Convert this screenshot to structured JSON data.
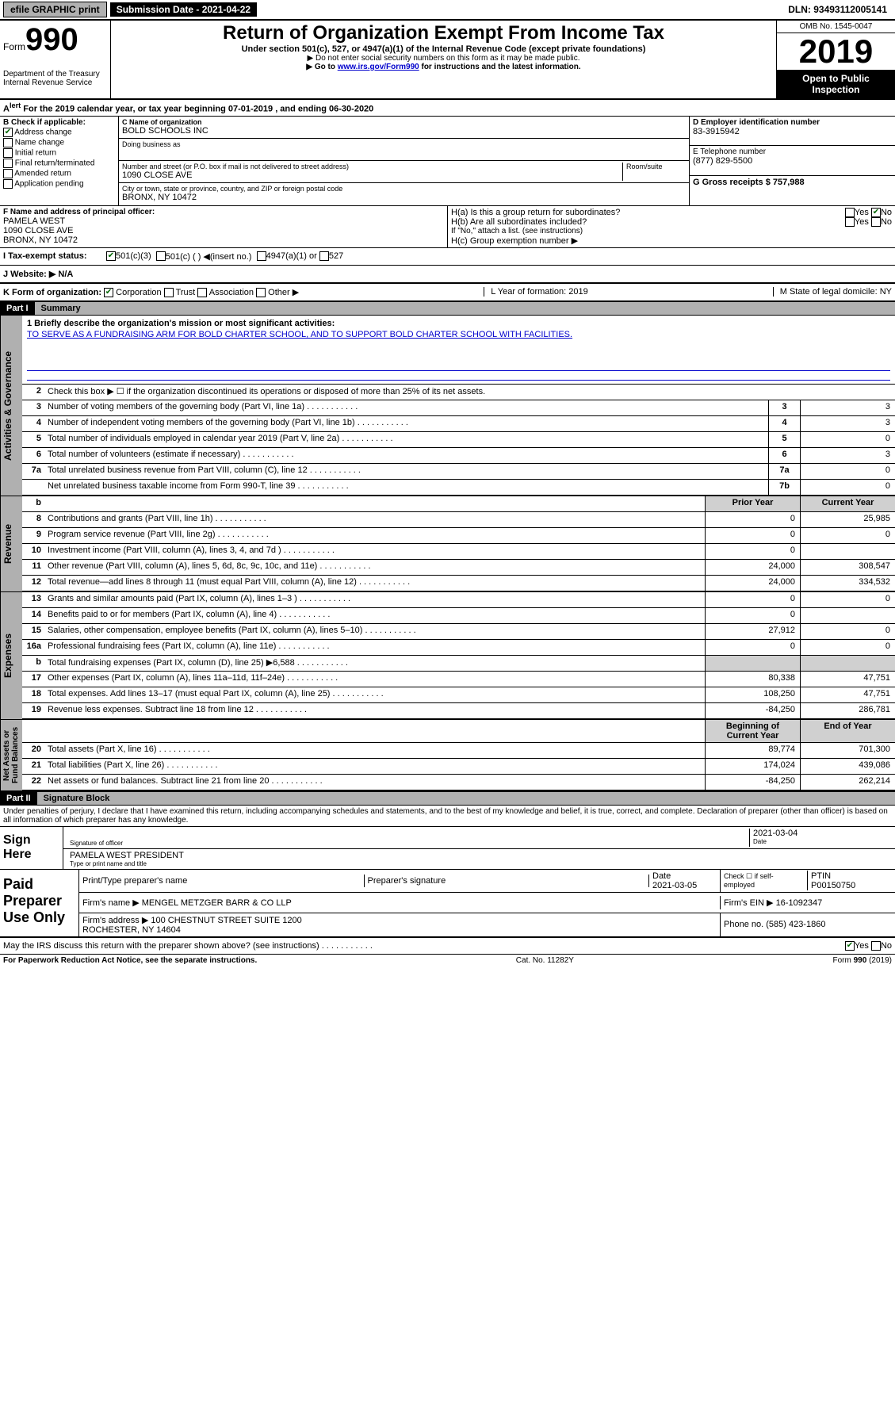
{
  "topbar": {
    "efile": "efile GRAPHIC print",
    "submission_label": "Submission Date - 2021-04-22",
    "dln": "DLN: 93493112005141"
  },
  "header": {
    "form_word": "Form",
    "form_num": "990",
    "dept": "Department of the Treasury\nInternal Revenue Service",
    "main_title": "Return of Organization Exempt From Income Tax",
    "sub1": "Under section 501(c), 527, or 4947(a)(1) of the Internal Revenue Code (except private foundations)",
    "sub2": "▶ Do not enter social security numbers on this form as it may be made public.",
    "sub3_pre": "▶ Go to ",
    "sub3_link": "www.irs.gov/Form990",
    "sub3_post": " for instructions and the latest information.",
    "omb": "OMB No. 1545-0047",
    "year": "2019",
    "open_public": "Open to Public Inspection"
  },
  "period": {
    "text": "For the 2019 calendar year, or tax year beginning 07-01-2019    , and ending 06-30-2020"
  },
  "box_b": {
    "title": "B Check if applicable:",
    "items": [
      "Address change",
      "Name change",
      "Initial return",
      "Final return/terminated",
      "Amended return",
      "Application pending"
    ],
    "checked": [
      true,
      false,
      false,
      false,
      false,
      false
    ]
  },
  "box_c": {
    "name_label": "C Name of organization",
    "name": "BOLD SCHOOLS INC",
    "dba_label": "Doing business as",
    "dba": "",
    "addr_label": "Number and street (or P.O. box if mail is not delivered to street address)",
    "room_label": "Room/suite",
    "addr": "1090 CLOSE AVE",
    "city_label": "City or town, state or province, country, and ZIP or foreign postal code",
    "city": "BRONX, NY  10472"
  },
  "box_d": {
    "label": "D Employer identification number",
    "value": "83-3915942"
  },
  "box_e": {
    "label": "E Telephone number",
    "value": "(877) 829-5500"
  },
  "box_g": {
    "label": "G Gross receipts $ 757,988"
  },
  "officer": {
    "label": "F  Name and address of principal officer:",
    "name": "PAMELA WEST",
    "addr1": "1090 CLOSE AVE",
    "addr2": "BRONX, NY  10472"
  },
  "box_h": {
    "ha": "H(a)  Is this a group return for subordinates?",
    "ha_yes": "Yes",
    "ha_no": "No",
    "hb": "H(b)  Are all subordinates included?",
    "hb_yes": "Yes",
    "hb_no": "No",
    "hb_note": "If \"No,\" attach a list. (see instructions)",
    "hc": "H(c)  Group exemption number ▶"
  },
  "row_i": {
    "label": "I   Tax-exempt status:",
    "opt1": "501(c)(3)",
    "opt2": "501(c) (  ) ◀(insert no.)",
    "opt3": "4947(a)(1) or",
    "opt4": "527"
  },
  "row_j": {
    "label": "J   Website: ▶",
    "value": "N/A"
  },
  "row_k": {
    "label": "K Form of organization:",
    "opts": [
      "Corporation",
      "Trust",
      "Association",
      "Other ▶"
    ],
    "l_label": "L Year of formation: 2019",
    "m_label": "M State of legal domicile: NY"
  },
  "part1": {
    "header": "Part I",
    "title": "Summary",
    "line1_label": "1  Briefly describe the organization's mission or most significant activities:",
    "line1_text": "TO SERVE AS A FUNDRAISING ARM FOR BOLD CHARTER SCHOOL, AND TO SUPPORT BOLD CHARTER SCHOOL WITH FACILITIES.",
    "line2": "Check this box ▶ ☐  if the organization discontinued its operations or disposed of more than 25% of its net assets.",
    "gov_lines": [
      {
        "n": "3",
        "t": "Number of voting members of the governing body (Part VI, line 1a)",
        "c": "3",
        "v": "3"
      },
      {
        "n": "4",
        "t": "Number of independent voting members of the governing body (Part VI, line 1b)",
        "c": "4",
        "v": "3"
      },
      {
        "n": "5",
        "t": "Total number of individuals employed in calendar year 2019 (Part V, line 2a)",
        "c": "5",
        "v": "0"
      },
      {
        "n": "6",
        "t": "Total number of volunteers (estimate if necessary)",
        "c": "6",
        "v": "3"
      },
      {
        "n": "7a",
        "t": "Total unrelated business revenue from Part VIII, column (C), line 12",
        "c": "7a",
        "v": "0"
      },
      {
        "n": "",
        "t": "Net unrelated business taxable income from Form 990-T, line 39",
        "c": "7b",
        "v": "0"
      }
    ],
    "col_headers": {
      "b": "b",
      "prior": "Prior Year",
      "current": "Current Year"
    },
    "rev_lines": [
      {
        "n": "8",
        "t": "Contributions and grants (Part VIII, line 1h)",
        "p": "0",
        "c": "25,985"
      },
      {
        "n": "9",
        "t": "Program service revenue (Part VIII, line 2g)",
        "p": "0",
        "c": "0"
      },
      {
        "n": "10",
        "t": "Investment income (Part VIII, column (A), lines 3, 4, and 7d )",
        "p": "0",
        "c": ""
      },
      {
        "n": "11",
        "t": "Other revenue (Part VIII, column (A), lines 5, 6d, 8c, 9c, 10c, and 11e)",
        "p": "24,000",
        "c": "308,547"
      },
      {
        "n": "12",
        "t": "Total revenue—add lines 8 through 11 (must equal Part VIII, column (A), line 12)",
        "p": "24,000",
        "c": "334,532"
      }
    ],
    "exp_lines": [
      {
        "n": "13",
        "t": "Grants and similar amounts paid (Part IX, column (A), lines 1–3 )",
        "p": "0",
        "c": "0"
      },
      {
        "n": "14",
        "t": "Benefits paid to or for members (Part IX, column (A), line 4)",
        "p": "0",
        "c": ""
      },
      {
        "n": "15",
        "t": "Salaries, other compensation, employee benefits (Part IX, column (A), lines 5–10)",
        "p": "27,912",
        "c": "0"
      },
      {
        "n": "16a",
        "t": "Professional fundraising fees (Part IX, column (A), line 11e)",
        "p": "0",
        "c": "0"
      },
      {
        "n": "b",
        "t": "Total fundraising expenses (Part IX, column (D), line 25) ▶6,588",
        "p": "",
        "c": "",
        "shade": true
      },
      {
        "n": "17",
        "t": "Other expenses (Part IX, column (A), lines 11a–11d, 11f–24e)",
        "p": "80,338",
        "c": "47,751"
      },
      {
        "n": "18",
        "t": "Total expenses. Add lines 13–17 (must equal Part IX, column (A), line 25)",
        "p": "108,250",
        "c": "47,751"
      },
      {
        "n": "19",
        "t": "Revenue less expenses. Subtract line 18 from line 12",
        "p": "-84,250",
        "c": "286,781"
      }
    ],
    "na_headers": {
      "beg": "Beginning of Current Year",
      "end": "End of Year"
    },
    "na_lines": [
      {
        "n": "20",
        "t": "Total assets (Part X, line 16)",
        "p": "89,774",
        "c": "701,300"
      },
      {
        "n": "21",
        "t": "Total liabilities (Part X, line 26)",
        "p": "174,024",
        "c": "439,086"
      },
      {
        "n": "22",
        "t": "Net assets or fund balances. Subtract line 21 from line 20",
        "p": "-84,250",
        "c": "262,214"
      }
    ],
    "vtabs": {
      "gov": "Activities & Governance",
      "rev": "Revenue",
      "exp": "Expenses",
      "na": "Net Assets or\nFund Balances"
    }
  },
  "part2": {
    "header": "Part II",
    "title": "Signature Block",
    "declaration": "Under penalties of perjury, I declare that I have examined this return, including accompanying schedules and statements, and to the best of my knowledge and belief, it is true, correct, and complete. Declaration of preparer (other than officer) is based on all information of which preparer has any knowledge.",
    "sign_here": "Sign Here",
    "sig_officer_lbl": "Signature of officer",
    "sig_date": "2021-03-04",
    "date_lbl": "Date",
    "officer_name": "PAMELA WEST PRESIDENT",
    "officer_name_lbl": "Type or print name and title",
    "paid": "Paid Preparer Use Only",
    "prep_name_lbl": "Print/Type preparer's name",
    "prep_sig_lbl": "Preparer's signature",
    "prep_date_lbl": "Date",
    "prep_date": "2021-03-05",
    "check_self": "Check ☐ if self-employed",
    "ptin_lbl": "PTIN",
    "ptin": "P00150750",
    "firm_name_lbl": "Firm's name    ▶",
    "firm_name": "MENGEL METZGER BARR & CO LLP",
    "firm_ein_lbl": "Firm's EIN ▶",
    "firm_ein": "16-1092347",
    "firm_addr_lbl": "Firm's address ▶",
    "firm_addr": "100 CHESTNUT STREET SUITE 1200\nROCHESTER, NY  14604",
    "phone_lbl": "Phone no.",
    "phone": "(585) 423-1860",
    "discuss": "May the IRS discuss this return with the preparer shown above? (see instructions)",
    "yes": "Yes",
    "no": "No"
  },
  "footer": {
    "left": "For Paperwork Reduction Act Notice, see the separate instructions.",
    "mid": "Cat. No. 11282Y",
    "right": "Form 990 (2019)"
  }
}
